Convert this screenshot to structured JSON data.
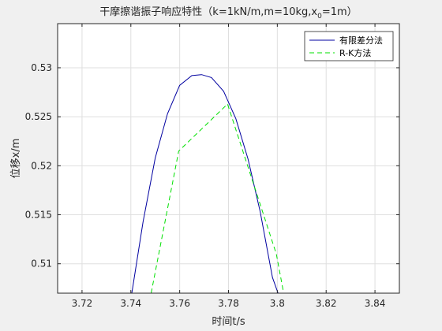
{
  "chart_data": {
    "type": "line",
    "title": {
      "main": "干摩擦谐振子响应特性（k=1kN/m,m=10kg,x",
      "sub": "0",
      "tail": "=1m）"
    },
    "xlabel": "时间t/s",
    "ylabel": "位移x/m",
    "xlim": [
      3.71,
      3.85
    ],
    "ylim": [
      0.507,
      0.5345
    ],
    "xticks": [
      3.72,
      3.74,
      3.76,
      3.78,
      3.8,
      3.82,
      3.84
    ],
    "xtick_labels": [
      "3.72",
      "3.74",
      "3.76",
      "3.78",
      "3.8",
      "3.82",
      "3.84"
    ],
    "yticks": [
      0.51,
      0.515,
      0.52,
      0.525,
      0.53
    ],
    "ytick_labels": [
      "0.51",
      "0.515",
      "0.52",
      "0.525",
      "0.53"
    ],
    "grid": true,
    "legend_position": "top-right",
    "series": [
      {
        "name": "有限差分法",
        "color": "#0000a0",
        "dash": "solid",
        "x": [
          3.7404,
          3.745,
          3.75,
          3.755,
          3.76,
          3.765,
          3.769,
          3.773,
          3.778,
          3.783,
          3.788,
          3.793,
          3.798,
          3.8003
        ],
        "y": [
          0.507,
          0.5143,
          0.5208,
          0.5253,
          0.5282,
          0.5292,
          0.5293,
          0.529,
          0.5276,
          0.5248,
          0.5207,
          0.5153,
          0.5086,
          0.507
        ]
      },
      {
        "name": "R-K方法",
        "color": "#00e000",
        "dash": "dashed",
        "x": [
          3.7483,
          3.7596,
          3.7796,
          3.7996,
          3.8026
        ],
        "y": [
          0.507,
          0.5215,
          0.5263,
          0.511,
          0.507
        ]
      }
    ]
  }
}
